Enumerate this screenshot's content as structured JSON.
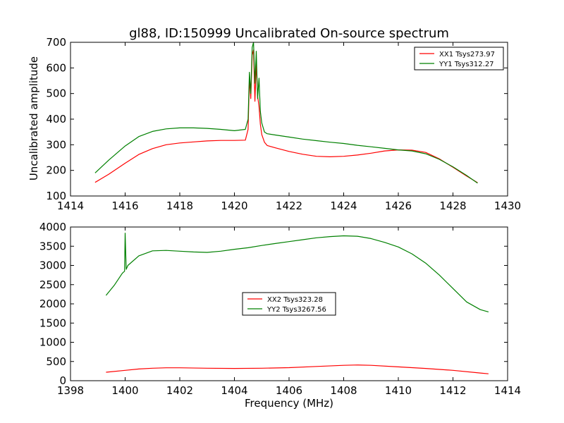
{
  "chart_data": [
    {
      "type": "line",
      "title": "gl88, ID:150999 Uncalibrated On-source spectrum",
      "xlabel": "",
      "ylabel": "Uncalibrated amplitude",
      "xlim": [
        1414,
        1430
      ],
      "ylim": [
        100,
        700
      ],
      "xticks": [
        "1414",
        "1416",
        "1418",
        "1420",
        "1422",
        "1424",
        "1426",
        "1428",
        "1430"
      ],
      "yticks": [
        "100",
        "200",
        "300",
        "400",
        "500",
        "600",
        "700"
      ],
      "legend_position": "top-right",
      "series": [
        {
          "name": "XX1 Tsys273.97",
          "color": "#ff0000",
          "x": [
            1414.9,
            1415.4,
            1416.0,
            1416.5,
            1417.0,
            1417.5,
            1418.0,
            1418.5,
            1419.0,
            1419.5,
            1420.0,
            1420.4,
            1420.5,
            1420.55,
            1420.6,
            1420.65,
            1420.7,
            1420.75,
            1420.8,
            1420.85,
            1420.9,
            1420.95,
            1421.0,
            1421.1,
            1421.2,
            1421.5,
            1422.0,
            1422.5,
            1423.0,
            1423.5,
            1424.0,
            1424.5,
            1425.0,
            1425.5,
            1426.0,
            1426.5,
            1427.0,
            1427.5,
            1428.0,
            1428.5,
            1428.9
          ],
          "y": [
            153,
            185,
            228,
            262,
            285,
            300,
            307,
            311,
            315,
            317,
            317,
            318,
            360,
            560,
            480,
            650,
            670,
            470,
            620,
            490,
            450,
            380,
            340,
            310,
            297,
            288,
            274,
            263,
            255,
            253,
            255,
            260,
            267,
            276,
            280,
            279,
            270,
            245,
            212,
            178,
            152
          ]
        },
        {
          "name": "YY1 Tsys312.27",
          "color": "#008000",
          "x": [
            1414.9,
            1415.4,
            1416.0,
            1416.5,
            1417.0,
            1417.5,
            1418.0,
            1418.5,
            1419.0,
            1419.5,
            1420.0,
            1420.4,
            1420.5,
            1420.55,
            1420.6,
            1420.65,
            1420.7,
            1420.75,
            1420.8,
            1420.85,
            1420.9,
            1420.95,
            1421.0,
            1421.1,
            1421.2,
            1421.5,
            1422.0,
            1422.5,
            1423.0,
            1423.5,
            1424.0,
            1424.5,
            1425.0,
            1425.5,
            1426.0,
            1426.5,
            1427.0,
            1427.5,
            1428.0,
            1428.5,
            1428.9
          ],
          "y": [
            190,
            240,
            295,
            332,
            352,
            362,
            366,
            366,
            364,
            360,
            355,
            360,
            400,
            583,
            500,
            680,
            700,
            540,
            665,
            480,
            560,
            430,
            385,
            350,
            343,
            338,
            330,
            322,
            316,
            310,
            305,
            298,
            292,
            286,
            280,
            276,
            265,
            243,
            214,
            180,
            150
          ]
        }
      ]
    },
    {
      "type": "line",
      "title": "",
      "xlabel": "Frequency (MHz)",
      "ylabel": "",
      "xlim": [
        1398,
        1414
      ],
      "ylim": [
        0,
        4000
      ],
      "xticks": [
        "1398",
        "1400",
        "1402",
        "1404",
        "1406",
        "1408",
        "1410",
        "1412",
        "1414"
      ],
      "yticks": [
        "0",
        "500",
        "1000",
        "1500",
        "2000",
        "2500",
        "3000",
        "3500",
        "4000"
      ],
      "legend_position": "center",
      "series": [
        {
          "name": "XX2 Tsys323.28",
          "color": "#ff0000",
          "x": [
            1399.3,
            1400.0,
            1400.5,
            1401.0,
            1401.5,
            1402.0,
            1403.0,
            1404.0,
            1405.0,
            1406.0,
            1407.0,
            1408.0,
            1408.5,
            1409.0,
            1410.0,
            1411.0,
            1412.0,
            1413.0,
            1413.3
          ],
          "y": [
            220,
            270,
            305,
            325,
            335,
            335,
            325,
            320,
            325,
            340,
            370,
            400,
            410,
            400,
            360,
            320,
            270,
            200,
            180
          ]
        },
        {
          "name": "YY2 Tsys3267.56",
          "color": "#008000",
          "x": [
            1399.3,
            1399.6,
            1399.9,
            1399.98,
            1400.0,
            1400.04,
            1400.1,
            1400.5,
            1401.0,
            1401.5,
            1402.0,
            1402.5,
            1403.0,
            1403.5,
            1404.0,
            1404.5,
            1405.0,
            1405.5,
            1406.0,
            1406.5,
            1407.0,
            1407.5,
            1408.0,
            1408.5,
            1409.0,
            1409.5,
            1410.0,
            1410.5,
            1411.0,
            1411.5,
            1412.0,
            1412.5,
            1413.0,
            1413.3
          ],
          "y": [
            2220,
            2480,
            2800,
            2850,
            3840,
            2900,
            3000,
            3250,
            3380,
            3390,
            3370,
            3350,
            3340,
            3370,
            3420,
            3460,
            3520,
            3570,
            3620,
            3670,
            3720,
            3750,
            3770,
            3760,
            3700,
            3600,
            3480,
            3300,
            3060,
            2750,
            2400,
            2050,
            1850,
            1790
          ]
        }
      ]
    }
  ]
}
